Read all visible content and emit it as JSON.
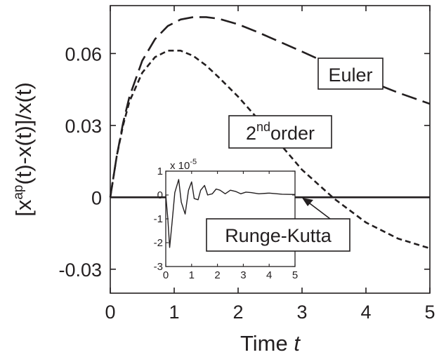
{
  "chart_data": {
    "type": "line",
    "title": "",
    "xlabel": "Time",
    "xlabel_var": "t",
    "ylabel": "[x^ap(t)-x(t)]/x(t)",
    "xlim": [
      0,
      5
    ],
    "ylim": [
      -0.04,
      0.08
    ],
    "xticks": [
      "0",
      "1",
      "2",
      "3",
      "4",
      "5"
    ],
    "yticks": [
      "-0.03",
      "0",
      "0.03",
      "0.06"
    ],
    "grid": false,
    "series": [
      {
        "name": "Euler",
        "style": "long-dash",
        "x": [
          0,
          0.1,
          0.2,
          0.3,
          0.5,
          0.7,
          0.9,
          1.1,
          1.3,
          1.5,
          1.7,
          2.0,
          2.3,
          2.6,
          3.0,
          3.5,
          4.0,
          4.5,
          5.0
        ],
        "y": [
          0,
          0.017,
          0.031,
          0.042,
          0.057,
          0.066,
          0.0715,
          0.0742,
          0.0752,
          0.0752,
          0.0745,
          0.0722,
          0.069,
          0.0655,
          0.0608,
          0.0548,
          0.049,
          0.0437,
          0.039
        ]
      },
      {
        "name": "2nd order",
        "style": "short-dash",
        "x": [
          0,
          0.1,
          0.2,
          0.3,
          0.5,
          0.7,
          0.9,
          1.1,
          1.3,
          1.5,
          1.7,
          2.0,
          2.3,
          2.6,
          3.0,
          3.5,
          4.0,
          4.5,
          5.0
        ],
        "y": [
          0,
          0.017,
          0.03,
          0.04,
          0.052,
          0.0585,
          0.0612,
          0.0612,
          0.059,
          0.055,
          0.05,
          0.042,
          0.033,
          0.024,
          0.0115,
          -0.0005,
          -0.0105,
          -0.0172,
          -0.0213
        ]
      },
      {
        "name": "Runge-Kutta",
        "style": "solid",
        "x": [
          0,
          5
        ],
        "y": [
          0,
          0
        ]
      }
    ],
    "annotations": {
      "euler": "Euler",
      "second_order_sup": "2",
      "second_order_suffix": "nd",
      "second_order_word": "order",
      "runge_kutta": "Runge-Kutta"
    },
    "inset": {
      "type": "line",
      "xlim": [
        0,
        5
      ],
      "ylim": [
        -3,
        1
      ],
      "xticks": [
        "0",
        "1",
        "2",
        "3",
        "4",
        "5"
      ],
      "yticks": [
        "-3",
        "-2",
        "-1",
        "0",
        "1"
      ],
      "y_multiplier_base": "x 10",
      "y_multiplier_exp": "-5",
      "series": [
        {
          "name": "Runge-Kutta",
          "x": [
            0,
            0.08,
            0.15,
            0.24,
            0.35,
            0.5,
            0.6,
            0.75,
            0.88,
            1.0,
            1.1,
            1.25,
            1.35,
            1.5,
            1.62,
            1.8,
            1.95,
            2.1,
            2.3,
            2.5,
            2.7,
            2.9,
            3.1,
            3.3,
            3.6,
            4.0,
            4.5,
            5.0
          ],
          "y": [
            0,
            -1.0,
            -2.2,
            -1.2,
            0.1,
            0.65,
            -0.3,
            -0.8,
            0.2,
            0.55,
            -0.15,
            -0.2,
            0.2,
            0.4,
            0.0,
            0.05,
            0.25,
            0.2,
            0.05,
            0.2,
            0.15,
            0.05,
            0.12,
            0.1,
            0.05,
            0.08,
            0.03,
            0.02
          ]
        }
      ]
    }
  }
}
